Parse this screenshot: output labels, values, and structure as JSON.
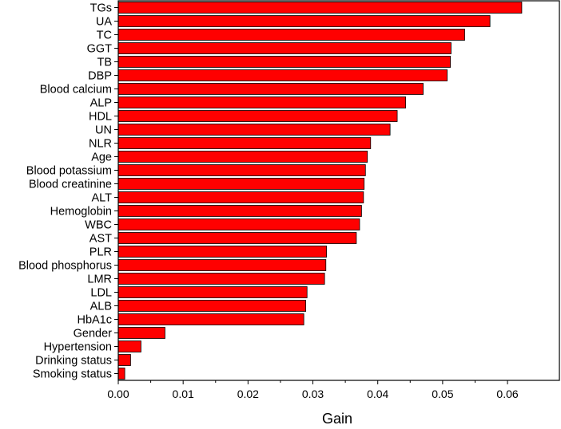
{
  "chart_data": {
    "type": "bar",
    "orientation": "horizontal",
    "title": "",
    "xlabel": "Gain",
    "ylabel": "",
    "xlim": [
      0,
      0.068
    ],
    "xticks": [
      "0.00",
      "0.01",
      "0.02",
      "0.03",
      "0.04",
      "0.05",
      "0.06"
    ],
    "grid": false,
    "legend": "none",
    "bar_color": "#ff0000",
    "categories": [
      "TGs",
      "UA",
      "TC",
      "GGT",
      "TB",
      "DBP",
      "Blood calcium",
      "ALP",
      "HDL",
      "UN",
      "NLR",
      "Age",
      "Blood potassium",
      "Blood creatinine",
      "ALT",
      "Hemoglobin",
      "WBC",
      "AST",
      "PLR",
      "Blood phosphorus",
      "LMR",
      "LDL",
      "ALB",
      "HbA1c",
      "Gender",
      "Hypertension",
      "Drinking status",
      "Smoking status"
    ],
    "values": [
      0.0622,
      0.0573,
      0.0534,
      0.0513,
      0.0512,
      0.0507,
      0.047,
      0.0443,
      0.043,
      0.0419,
      0.0389,
      0.0384,
      0.0381,
      0.0379,
      0.0378,
      0.0375,
      0.0372,
      0.0367,
      0.0321,
      0.032,
      0.0318,
      0.0291,
      0.0289,
      0.0286,
      0.0072,
      0.0035,
      0.0019,
      0.001
    ]
  }
}
